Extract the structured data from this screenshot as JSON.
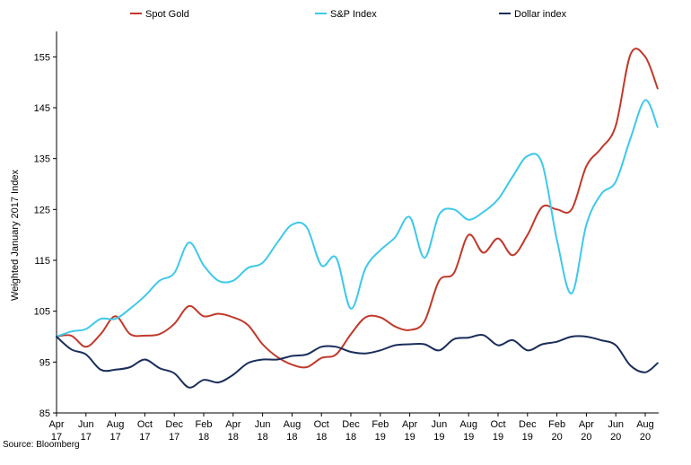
{
  "chart_data": {
    "type": "line",
    "title": "",
    "xlabel": "",
    "ylabel": "Weighted January 2017 Index",
    "ylim": [
      85,
      160
    ],
    "yticks": [
      "155",
      "145",
      "135",
      "125",
      "115",
      "105",
      "95",
      "85"
    ],
    "ytick_values": [
      155,
      145,
      135,
      125,
      115,
      105,
      95,
      85
    ],
    "xticks": [
      [
        "Apr",
        "17"
      ],
      [
        "Jun",
        "17"
      ],
      [
        "Aug",
        "17"
      ],
      [
        "Oct",
        "17"
      ],
      [
        "Dec",
        "17"
      ],
      [
        "Feb",
        "18"
      ],
      [
        "Apr",
        "18"
      ],
      [
        "Jun",
        "18"
      ],
      [
        "Aug",
        "18"
      ],
      [
        "Oct",
        "18"
      ],
      [
        "Dec",
        "18"
      ],
      [
        "Feb",
        "19"
      ],
      [
        "Apr",
        "19"
      ],
      [
        "Jun",
        "19"
      ],
      [
        "Aug",
        "19"
      ],
      [
        "Oct",
        "19"
      ],
      [
        "Dec",
        "19"
      ],
      [
        "Feb",
        "20"
      ],
      [
        "Apr",
        "20"
      ],
      [
        "Jun",
        "20"
      ],
      [
        "Aug",
        "20"
      ]
    ],
    "grid": false,
    "legend_position": "top",
    "source": "Source: Bloomberg",
    "series": [
      {
        "name": "Spot Gold",
        "color": "#c0392b",
        "points": [
          [
            0,
            100
          ],
          [
            0.5,
            100.2
          ],
          [
            1,
            98
          ],
          [
            1.5,
            100.5
          ],
          [
            2,
            104
          ],
          [
            2.5,
            100.5
          ],
          [
            3,
            100.2
          ],
          [
            3.5,
            100.5
          ],
          [
            4,
            102.5
          ],
          [
            4.5,
            106
          ],
          [
            5,
            104
          ],
          [
            5.5,
            104.5
          ],
          [
            6,
            103.8
          ],
          [
            6.5,
            102.3
          ],
          [
            7,
            98.5
          ],
          [
            7.5,
            96
          ],
          [
            8,
            94.5
          ],
          [
            8.5,
            94
          ],
          [
            9,
            95.8
          ],
          [
            9.5,
            96.5
          ],
          [
            10,
            100.5
          ],
          [
            10.5,
            103.8
          ],
          [
            11,
            103.8
          ],
          [
            11.5,
            102
          ],
          [
            12,
            101.3
          ],
          [
            12.5,
            103
          ],
          [
            13,
            111
          ],
          [
            13.5,
            112.5
          ],
          [
            14,
            120
          ],
          [
            14.5,
            116.5
          ],
          [
            15,
            119.3
          ],
          [
            15.5,
            116
          ],
          [
            16,
            120
          ],
          [
            16.5,
            125.5
          ],
          [
            17,
            125
          ],
          [
            17.5,
            125
          ],
          [
            18,
            133.5
          ],
          [
            18.5,
            137
          ],
          [
            19,
            141.5
          ],
          [
            19.5,
            155.5
          ],
          [
            20,
            155
          ],
          [
            20.42,
            148.8
          ]
        ]
      },
      {
        "name": "S&P Index",
        "color": "#3ec8ea",
        "points": [
          [
            0,
            100
          ],
          [
            0.5,
            101
          ],
          [
            1,
            101.5
          ],
          [
            1.5,
            103.5
          ],
          [
            2,
            103.5
          ],
          [
            2.5,
            105.5
          ],
          [
            3,
            108
          ],
          [
            3.5,
            111
          ],
          [
            4,
            112.5
          ],
          [
            4.5,
            118.5
          ],
          [
            5,
            114
          ],
          [
            5.5,
            111
          ],
          [
            6,
            111
          ],
          [
            6.5,
            113.5
          ],
          [
            7,
            114.5
          ],
          [
            7.5,
            118.5
          ],
          [
            8,
            122
          ],
          [
            8.5,
            121.5
          ],
          [
            9,
            114
          ],
          [
            9.5,
            115.5
          ],
          [
            10,
            105.5
          ],
          [
            10.5,
            113.5
          ],
          [
            11,
            117
          ],
          [
            11.5,
            119.5
          ],
          [
            12,
            123.5
          ],
          [
            12.5,
            115.5
          ],
          [
            13,
            124
          ],
          [
            13.5,
            125
          ],
          [
            14,
            123
          ],
          [
            14.5,
            124.5
          ],
          [
            15,
            127
          ],
          [
            15.5,
            131.5
          ],
          [
            16,
            135.5
          ],
          [
            16.5,
            134
          ],
          [
            17,
            119
          ],
          [
            17.5,
            108.5
          ],
          [
            18,
            122
          ],
          [
            18.5,
            128
          ],
          [
            19,
            130.5
          ],
          [
            19.5,
            139
          ],
          [
            20,
            146.5
          ],
          [
            20.42,
            141.2
          ]
        ]
      },
      {
        "name": "Dollar index",
        "color": "#1a2e5a",
        "points": [
          [
            0,
            100
          ],
          [
            0.5,
            97.5
          ],
          [
            1,
            96.5
          ],
          [
            1.5,
            93.5
          ],
          [
            2,
            93.5
          ],
          [
            2.5,
            94
          ],
          [
            3,
            95.5
          ],
          [
            3.5,
            93.8
          ],
          [
            4,
            92.8
          ],
          [
            4.5,
            90
          ],
          [
            5,
            91.5
          ],
          [
            5.5,
            91
          ],
          [
            6,
            92.5
          ],
          [
            6.5,
            94.8
          ],
          [
            7,
            95.5
          ],
          [
            7.5,
            95.5
          ],
          [
            8,
            96.2
          ],
          [
            8.5,
            96.5
          ],
          [
            9,
            98
          ],
          [
            9.5,
            98
          ],
          [
            10,
            97
          ],
          [
            10.5,
            96.7
          ],
          [
            11,
            97.3
          ],
          [
            11.5,
            98.3
          ],
          [
            12,
            98.5
          ],
          [
            12.5,
            98.5
          ],
          [
            13,
            97.3
          ],
          [
            13.5,
            99.5
          ],
          [
            14,
            99.8
          ],
          [
            14.5,
            100.3
          ],
          [
            15,
            98.3
          ],
          [
            15.5,
            99.3
          ],
          [
            16,
            97.3
          ],
          [
            16.5,
            98.5
          ],
          [
            17,
            99
          ],
          [
            17.5,
            100
          ],
          [
            18,
            100
          ],
          [
            18.5,
            99.3
          ],
          [
            19,
            98.3
          ],
          [
            19.5,
            94.3
          ],
          [
            20,
            93
          ],
          [
            20.42,
            94.8
          ]
        ]
      }
    ]
  }
}
